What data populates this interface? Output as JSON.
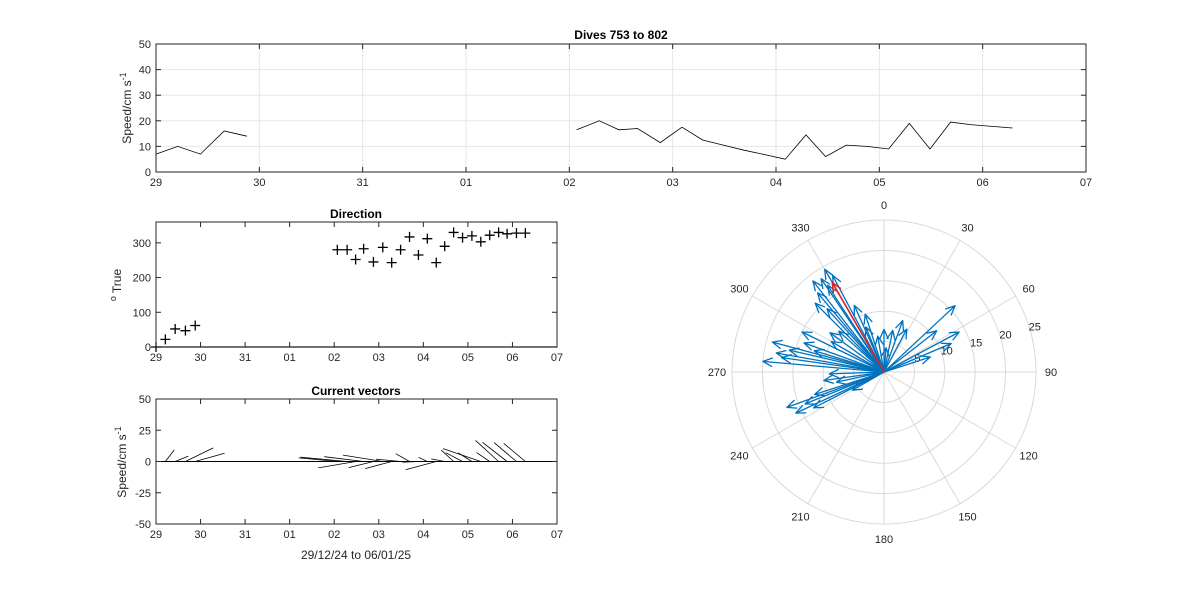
{
  "figure": {
    "background": "#ffffff"
  },
  "chart_data": [
    {
      "id": "speed",
      "type": "line",
      "title": "Dives 753 to 802",
      "xlabel": "",
      "ylabel": "Speed/cm s",
      "ylabel_superscript": "-1",
      "xlim": [
        0,
        9
      ],
      "ylim": [
        0,
        50
      ],
      "xticks": [
        0,
        1,
        2,
        3,
        4,
        5,
        6,
        7,
        8,
        9
      ],
      "xticklabels": [
        "29",
        "30",
        "31",
        "01",
        "02",
        "03",
        "04",
        "05",
        "06",
        "07"
      ],
      "yticks": [
        0,
        10,
        20,
        30,
        40,
        50
      ],
      "yticklabels": [
        "0",
        "10",
        "20",
        "30",
        "40",
        "50"
      ],
      "grid": true,
      "line_color": "#000000",
      "segments": [
        {
          "x": [
            0.0,
            0.21,
            0.43,
            0.66,
            0.88
          ],
          "y": [
            7,
            10,
            7,
            16,
            14
          ]
        },
        {
          "x": [
            4.07,
            4.29,
            4.48,
            4.66,
            4.88,
            5.09,
            5.29,
            5.49,
            5.69,
            5.89,
            6.09,
            6.29,
            6.48,
            6.68,
            6.88,
            7.09,
            7.29,
            7.49,
            7.69,
            7.88,
            8.09,
            8.29
          ],
          "y": [
            16.5,
            20,
            16.5,
            17,
            11.5,
            17.5,
            12.5,
            10.5,
            8.5,
            6.8,
            5,
            14.5,
            6,
            10.5,
            10,
            9,
            19,
            9,
            19.5,
            18.5,
            17.8,
            17.2
          ]
        }
      ]
    },
    {
      "id": "direction",
      "type": "scatter",
      "title": "Direction",
      "xlabel": "",
      "ylabel": "True",
      "ylabel_prefix": "o",
      "xlim": [
        0,
        9
      ],
      "ylim": [
        0,
        360
      ],
      "xticks": [
        0,
        1,
        2,
        3,
        4,
        5,
        6,
        7,
        8,
        9
      ],
      "xticklabels": [
        "29",
        "30",
        "31",
        "01",
        "02",
        "03",
        "04",
        "05",
        "06",
        "07"
      ],
      "yticks": [
        0,
        100,
        200,
        300
      ],
      "yticklabels": [
        "0",
        "100",
        "200",
        "300"
      ],
      "grid": false,
      "marker": "+",
      "marker_color": "#000000",
      "x": [
        0.0,
        0.21,
        0.43,
        0.66,
        0.88,
        4.07,
        4.29,
        4.48,
        4.66,
        4.88,
        5.09,
        5.29,
        5.49,
        5.69,
        5.89,
        6.09,
        6.29,
        6.48,
        6.68,
        6.88,
        7.09,
        7.29,
        7.49,
        7.69,
        7.88,
        8.09,
        8.29
      ],
      "y": [
        0,
        22,
        52,
        47,
        62,
        280,
        280,
        252,
        283,
        245,
        287,
        243,
        280,
        317,
        265,
        312,
        243,
        290,
        330,
        315,
        320,
        303,
        322,
        330,
        326,
        328,
        328
      ]
    },
    {
      "id": "vectors",
      "type": "quiver",
      "title": "Current vectors",
      "xlabel": "29/12/24 to 06/01/25",
      "ylabel": "Speed/cm s",
      "ylabel_superscript": "-1",
      "xlim": [
        0,
        9
      ],
      "ylim": [
        -50,
        50
      ],
      "xticks": [
        0,
        1,
        2,
        3,
        4,
        5,
        6,
        7,
        8,
        9
      ],
      "xticklabels": [
        "29",
        "30",
        "31",
        "01",
        "02",
        "03",
        "04",
        "05",
        "06",
        "07"
      ],
      "yticks": [
        -50,
        -25,
        0,
        25,
        50
      ],
      "yticklabels": [
        "-50",
        "-25",
        "0",
        "25",
        "50"
      ],
      "grid": false,
      "line_color": "#000000",
      "vectors": [
        {
          "x": 0.0,
          "speed": 7,
          "direction": 0
        },
        {
          "x": 0.21,
          "speed": 10,
          "direction": 22
        },
        {
          "x": 0.43,
          "speed": 7,
          "direction": 52
        },
        {
          "x": 0.66,
          "speed": 16,
          "direction": 47
        },
        {
          "x": 0.88,
          "speed": 14,
          "direction": 62
        },
        {
          "x": 4.07,
          "speed": 16.5,
          "direction": 280
        },
        {
          "x": 4.29,
          "speed": 20,
          "direction": 280
        },
        {
          "x": 4.48,
          "speed": 16.5,
          "direction": 252
        },
        {
          "x": 4.66,
          "speed": 17,
          "direction": 283
        },
        {
          "x": 4.88,
          "speed": 11.5,
          "direction": 245
        },
        {
          "x": 5.09,
          "speed": 17.5,
          "direction": 287
        },
        {
          "x": 5.29,
          "speed": 12.5,
          "direction": 243
        },
        {
          "x": 5.49,
          "speed": 10.5,
          "direction": 280
        },
        {
          "x": 5.69,
          "speed": 8.5,
          "direction": 317
        },
        {
          "x": 5.89,
          "speed": 6.8,
          "direction": 265
        },
        {
          "x": 6.09,
          "speed": 5,
          "direction": 312
        },
        {
          "x": 6.29,
          "speed": 14.5,
          "direction": 243
        },
        {
          "x": 6.48,
          "speed": 6,
          "direction": 290
        },
        {
          "x": 6.68,
          "speed": 10.5,
          "direction": 330
        },
        {
          "x": 6.88,
          "speed": 10,
          "direction": 315
        },
        {
          "x": 7.09,
          "speed": 9,
          "direction": 320
        },
        {
          "x": 7.29,
          "speed": 19,
          "direction": 303
        },
        {
          "x": 7.49,
          "speed": 9,
          "direction": 322
        },
        {
          "x": 7.69,
          "speed": 19.5,
          "direction": 330
        },
        {
          "x": 7.88,
          "speed": 18.5,
          "direction": 326
        },
        {
          "x": 8.09,
          "speed": 17.8,
          "direction": 328
        },
        {
          "x": 8.29,
          "speed": 17.2,
          "direction": 328
        }
      ]
    },
    {
      "id": "polar",
      "type": "polar-compass",
      "rmax": 25,
      "radial_ticks": [
        5,
        10,
        15,
        20,
        25
      ],
      "radial_ticklabels": [
        "5",
        "10",
        "15",
        "20",
        "25"
      ],
      "radial_label_angle": 75,
      "angle_ticks": [
        0,
        30,
        60,
        90,
        120,
        150,
        180,
        210,
        240,
        270,
        300,
        330
      ],
      "angle_ticklabels": [
        "0",
        "30",
        "60",
        "90",
        "120",
        "150",
        "180",
        "210",
        "240",
        "270",
        "300",
        "330"
      ],
      "grid_color": "#d9d9d9",
      "arrow_color": "#0072bd",
      "mean_arrow_color": "#d62728",
      "arrows": [
        {
          "direction": 20,
          "speed": 9
        },
        {
          "direction": 28,
          "speed": 8
        },
        {
          "direction": 47,
          "speed": 16
        },
        {
          "direction": 52,
          "speed": 11
        },
        {
          "direction": 62,
          "speed": 14
        },
        {
          "direction": 67,
          "speed": 12
        },
        {
          "direction": 72,
          "speed": 8
        },
        {
          "direction": 12,
          "speed": 7
        },
        {
          "direction": 275,
          "speed": 20
        },
        {
          "direction": 280,
          "speed": 18
        },
        {
          "direction": 285,
          "speed": 19
        },
        {
          "direction": 278,
          "speed": 17
        },
        {
          "direction": 290,
          "speed": 14
        },
        {
          "direction": 283,
          "speed": 16
        },
        {
          "direction": 296,
          "speed": 15
        },
        {
          "direction": 287,
          "speed": 12
        },
        {
          "direction": 262,
          "speed": 10
        },
        {
          "direction": 268,
          "speed": 9
        },
        {
          "direction": 250,
          "speed": 17
        },
        {
          "direction": 245,
          "speed": 16
        },
        {
          "direction": 243,
          "speed": 13
        },
        {
          "direction": 252,
          "speed": 12
        },
        {
          "direction": 248,
          "speed": 14
        },
        {
          "direction": 258,
          "speed": 8
        },
        {
          "direction": 240,
          "speed": 6
        },
        {
          "direction": 312,
          "speed": 10
        },
        {
          "direction": 306,
          "speed": 11
        },
        {
          "direction": 300,
          "speed": 10
        },
        {
          "direction": 315,
          "speed": 16
        },
        {
          "direction": 320,
          "speed": 17
        },
        {
          "direction": 322,
          "speed": 19
        },
        {
          "direction": 326,
          "speed": 18.5
        },
        {
          "direction": 330,
          "speed": 19.5
        },
        {
          "direction": 332,
          "speed": 18
        },
        {
          "direction": 327,
          "speed": 17
        },
        {
          "direction": 318,
          "speed": 14
        },
        {
          "direction": 336,
          "speed": 12
        },
        {
          "direction": 342,
          "speed": 10
        },
        {
          "direction": 350,
          "speed": 6
        },
        {
          "direction": 5,
          "speed": 4
        },
        {
          "direction": 0,
          "speed": 7
        },
        {
          "direction": 338,
          "speed": 8
        }
      ],
      "mean_arrow": {
        "direction": 330,
        "speed": 17
      }
    }
  ]
}
